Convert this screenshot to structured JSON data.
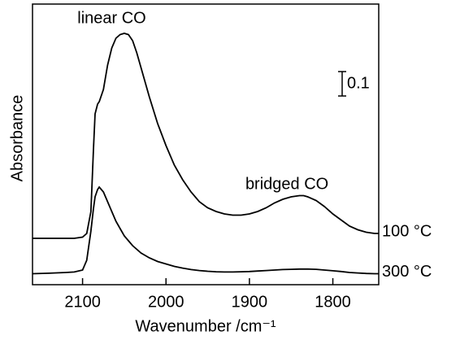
{
  "chart_data": {
    "type": "line",
    "y_label": "Absorbance",
    "x_label": "Wavenumber /cm⁻¹",
    "xlim": [
      2160,
      1745
    ],
    "xticks": [
      2100,
      2000,
      1900,
      1800
    ],
    "ylim": [
      0,
      1.15
    ],
    "scale_bar": 0.1,
    "annotations": [
      {
        "text": "linear CO",
        "x": 2065,
        "y": 1.09
      },
      {
        "text": "bridged CO",
        "x": 1855,
        "y": 0.41
      }
    ],
    "x": [
      2160,
      2140,
      2120,
      2110,
      2100,
      2095,
      2090,
      2087,
      2085,
      2082,
      2080,
      2075,
      2070,
      2065,
      2060,
      2055,
      2050,
      2045,
      2040,
      2035,
      2030,
      2020,
      2010,
      2000,
      1990,
      1980,
      1970,
      1960,
      1950,
      1940,
      1930,
      1920,
      1910,
      1900,
      1890,
      1880,
      1870,
      1860,
      1850,
      1840,
      1835,
      1830,
      1820,
      1810,
      1800,
      1790,
      1780,
      1770,
      1760,
      1750,
      1745
    ],
    "series": [
      {
        "name": "100 °C",
        "color": "#000000",
        "values": [
          0.19,
          0.19,
          0.19,
          0.19,
          0.195,
          0.21,
          0.3,
          0.55,
          0.7,
          0.74,
          0.75,
          0.8,
          0.9,
          0.97,
          1.01,
          1.025,
          1.03,
          1.025,
          1.0,
          0.95,
          0.89,
          0.77,
          0.66,
          0.57,
          0.49,
          0.43,
          0.38,
          0.34,
          0.315,
          0.3,
          0.29,
          0.285,
          0.285,
          0.29,
          0.3,
          0.315,
          0.335,
          0.35,
          0.36,
          0.365,
          0.365,
          0.36,
          0.345,
          0.32,
          0.29,
          0.265,
          0.24,
          0.225,
          0.215,
          0.21,
          0.21
        ]
      },
      {
        "name": "300 °C",
        "color": "#000000",
        "values": [
          0.045,
          0.047,
          0.05,
          0.052,
          0.06,
          0.1,
          0.22,
          0.31,
          0.36,
          0.39,
          0.4,
          0.38,
          0.34,
          0.3,
          0.26,
          0.23,
          0.2,
          0.18,
          0.16,
          0.145,
          0.13,
          0.11,
          0.095,
          0.085,
          0.075,
          0.068,
          0.062,
          0.058,
          0.055,
          0.053,
          0.052,
          0.052,
          0.053,
          0.054,
          0.056,
          0.058,
          0.06,
          0.062,
          0.063,
          0.064,
          0.064,
          0.064,
          0.063,
          0.06,
          0.057,
          0.054,
          0.05,
          0.048,
          0.046,
          0.045,
          0.045
        ]
      }
    ]
  }
}
